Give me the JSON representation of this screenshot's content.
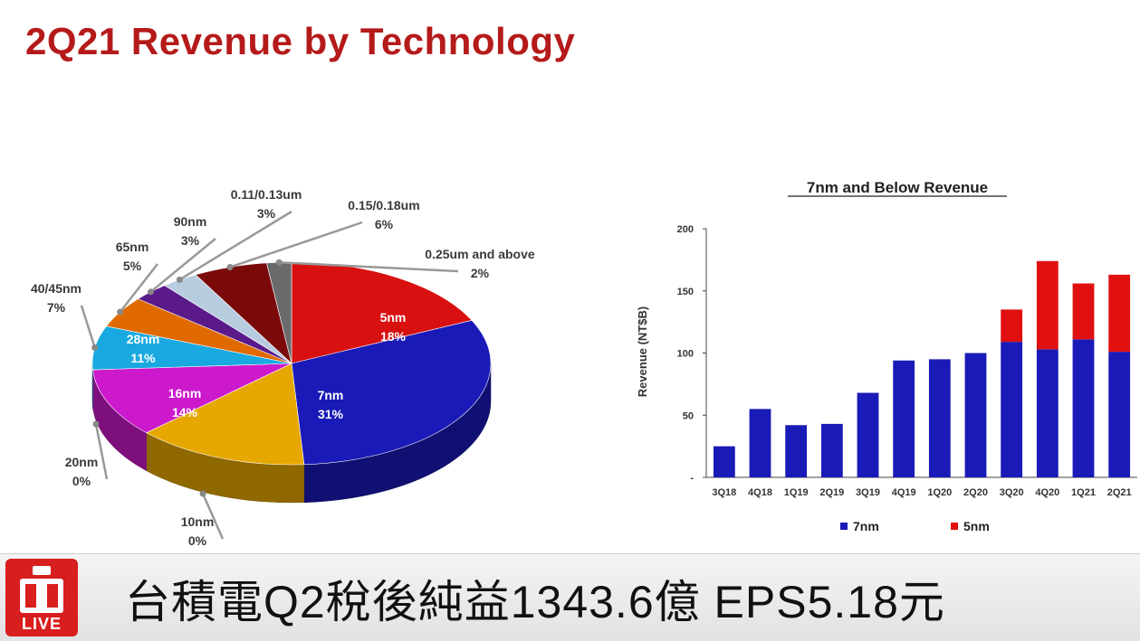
{
  "slide": {
    "title": "2Q21 Revenue by Technology"
  },
  "chart_data": [
    {
      "type": "pie",
      "slices": [
        {
          "label": "5nm",
          "pct_label": "18%",
          "value": 18,
          "color": "#d81010"
        },
        {
          "label": "7nm",
          "pct_label": "31%",
          "value": 31,
          "color": "#1a1ab8"
        },
        {
          "label": "10nm",
          "pct_label": "0%",
          "value": 0,
          "color": "#2a2a80"
        },
        {
          "label": "20nm",
          "pct_label": "0%",
          "value": 0,
          "color": "#8a6a10"
        },
        {
          "label": "16nm",
          "pct_label": "14%",
          "value": 14,
          "color": "#e6a800"
        },
        {
          "label": "28nm",
          "pct_label": "11%",
          "value": 11,
          "color": "#cc19cc"
        },
        {
          "label": "40/45nm",
          "pct_label": "7%",
          "value": 7,
          "color": "#19a9e0"
        },
        {
          "label": "65nm",
          "pct_label": "5%",
          "value": 5,
          "color": "#e06a00"
        },
        {
          "label": "90nm",
          "pct_label": "3%",
          "value": 3,
          "color": "#5a1a8a"
        },
        {
          "label": "0.11/0.13um",
          "pct_label": "3%",
          "value": 3,
          "color": "#b8cce0"
        },
        {
          "label": "0.15/0.18um",
          "pct_label": "6%",
          "value": 6,
          "color": "#7a0a0a"
        },
        {
          "label": "0.25um and above",
          "pct_label": "2%",
          "value": 2,
          "color": "#6a6a6a"
        }
      ]
    },
    {
      "type": "bar",
      "stacked": true,
      "title": "7nm and Below Revenue",
      "ylabel": "Revenue (NT$B)",
      "ylim": [
        0,
        200
      ],
      "yticks": [
        "-",
        "50",
        "100",
        "150",
        "200"
      ],
      "categories": [
        "3Q18",
        "4Q18",
        "1Q19",
        "2Q19",
        "3Q19",
        "4Q19",
        "1Q20",
        "2Q20",
        "3Q20",
        "4Q20",
        "1Q21",
        "2Q21"
      ],
      "series": [
        {
          "name": "7nm",
          "color": "#1a1ab8",
          "values": [
            25,
            55,
            42,
            43,
            68,
            94,
            95,
            100,
            109,
            103,
            111,
            101
          ]
        },
        {
          "name": "5nm",
          "color": "#e01010",
          "values": [
            0,
            0,
            0,
            0,
            0,
            0,
            0,
            0,
            26,
            71,
            45,
            62
          ]
        }
      ],
      "legend_position": "bottom"
    }
  ],
  "ticker": {
    "logo_text": "LIVE",
    "headline": "台積電Q2稅後純益1343.6億 EPS5.18元"
  }
}
